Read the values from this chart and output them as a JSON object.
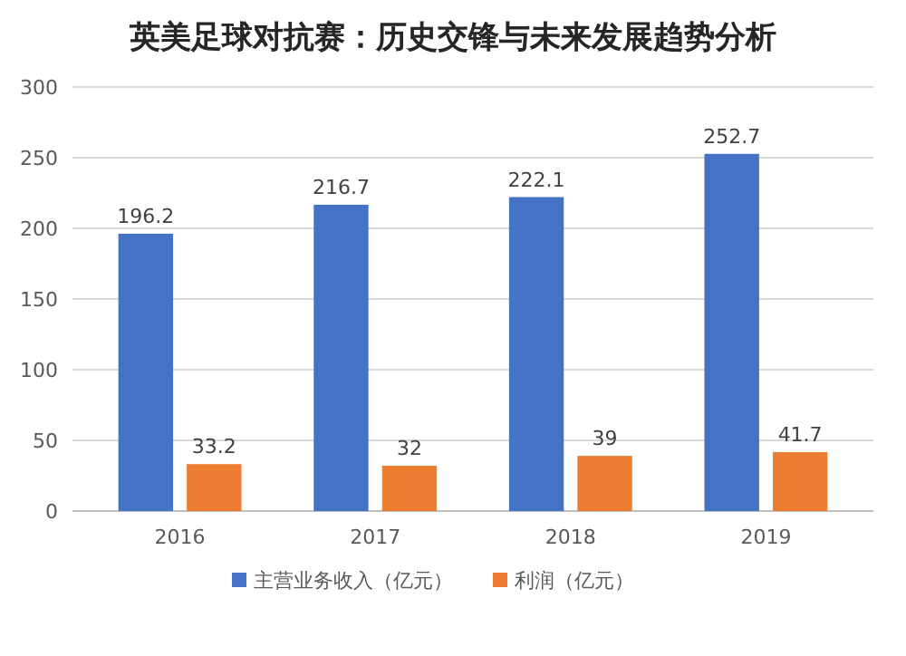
{
  "chart_data": {
    "type": "bar",
    "title": "英美足球对抗赛：历史交锋与未来发展趋势分析",
    "categories": [
      "2016",
      "2017",
      "2018",
      "2019"
    ],
    "series": [
      {
        "name": "主营业务收入（亿元）",
        "color": "#4472c4",
        "values": [
          196.2,
          216.7,
          222.1,
          252.7
        ]
      },
      {
        "name": "利润（亿元）",
        "color": "#ed7d31",
        "values": [
          33.2,
          32,
          39,
          41.7
        ]
      }
    ],
    "ylim": [
      0,
      300
    ],
    "yticks": [
      0,
      50,
      100,
      150,
      200,
      250,
      300
    ],
    "grid": "y",
    "legend": "bottom",
    "data_labels": true
  }
}
